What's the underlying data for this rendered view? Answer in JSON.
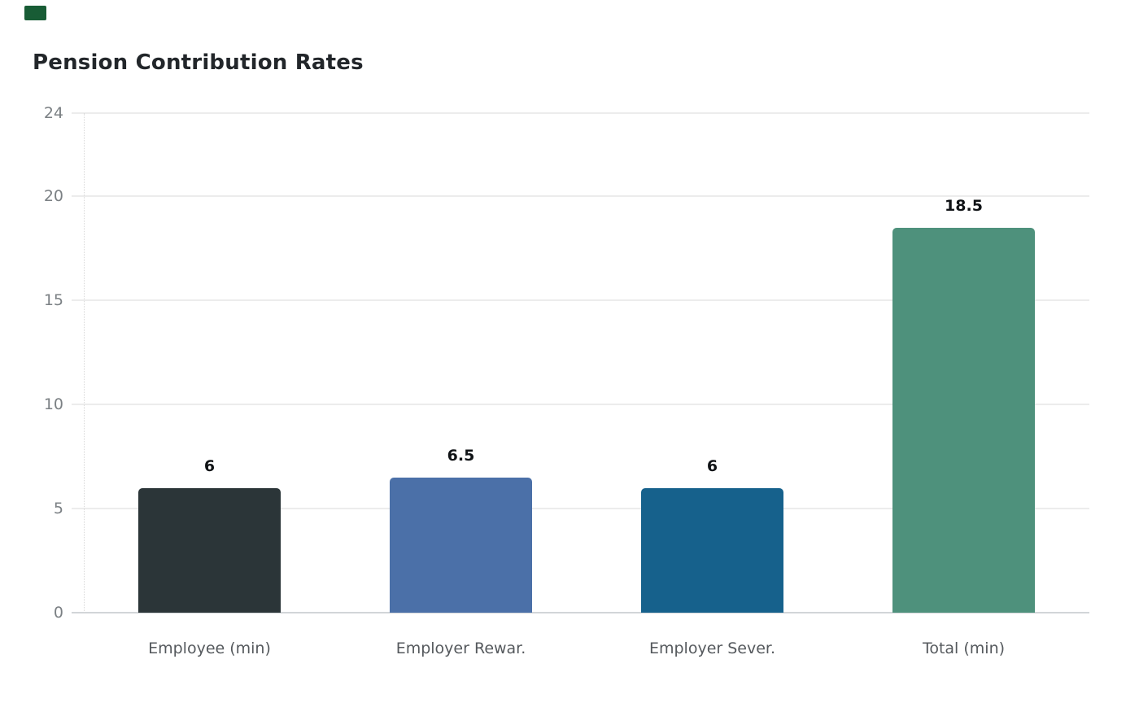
{
  "page": {
    "background_color": "#ffffff",
    "corner_mark_color": "#185c35"
  },
  "header": {
    "title": "Pension Contribution Rates",
    "title_color": "#22262a"
  },
  "chart_data": {
    "type": "bar",
    "title": "Pension Contribution Rates",
    "categories": [
      "Employee (min)",
      "Employer Rewar.",
      "Employer Sever.",
      "Total (min)"
    ],
    "values": [
      6,
      6.5,
      6,
      18.5
    ],
    "value_labels": [
      "6",
      "6.5",
      "6",
      "18.5"
    ],
    "bar_colors": [
      "#2b3538",
      "#4b70a8",
      "#16618c",
      "#4e917c"
    ],
    "yticks": [
      0,
      5,
      10,
      15,
      20,
      24
    ],
    "ylim": [
      0,
      24
    ],
    "xlabel": "",
    "ylabel": "",
    "grid": "horizontal",
    "legend_position": "none",
    "value_label_color": "#101316",
    "xtick_label_color": "#55595d",
    "ytick_label_color": "#7b8084",
    "gridline_color": "#ececec",
    "axis_line_color": "#d2d5d8"
  }
}
